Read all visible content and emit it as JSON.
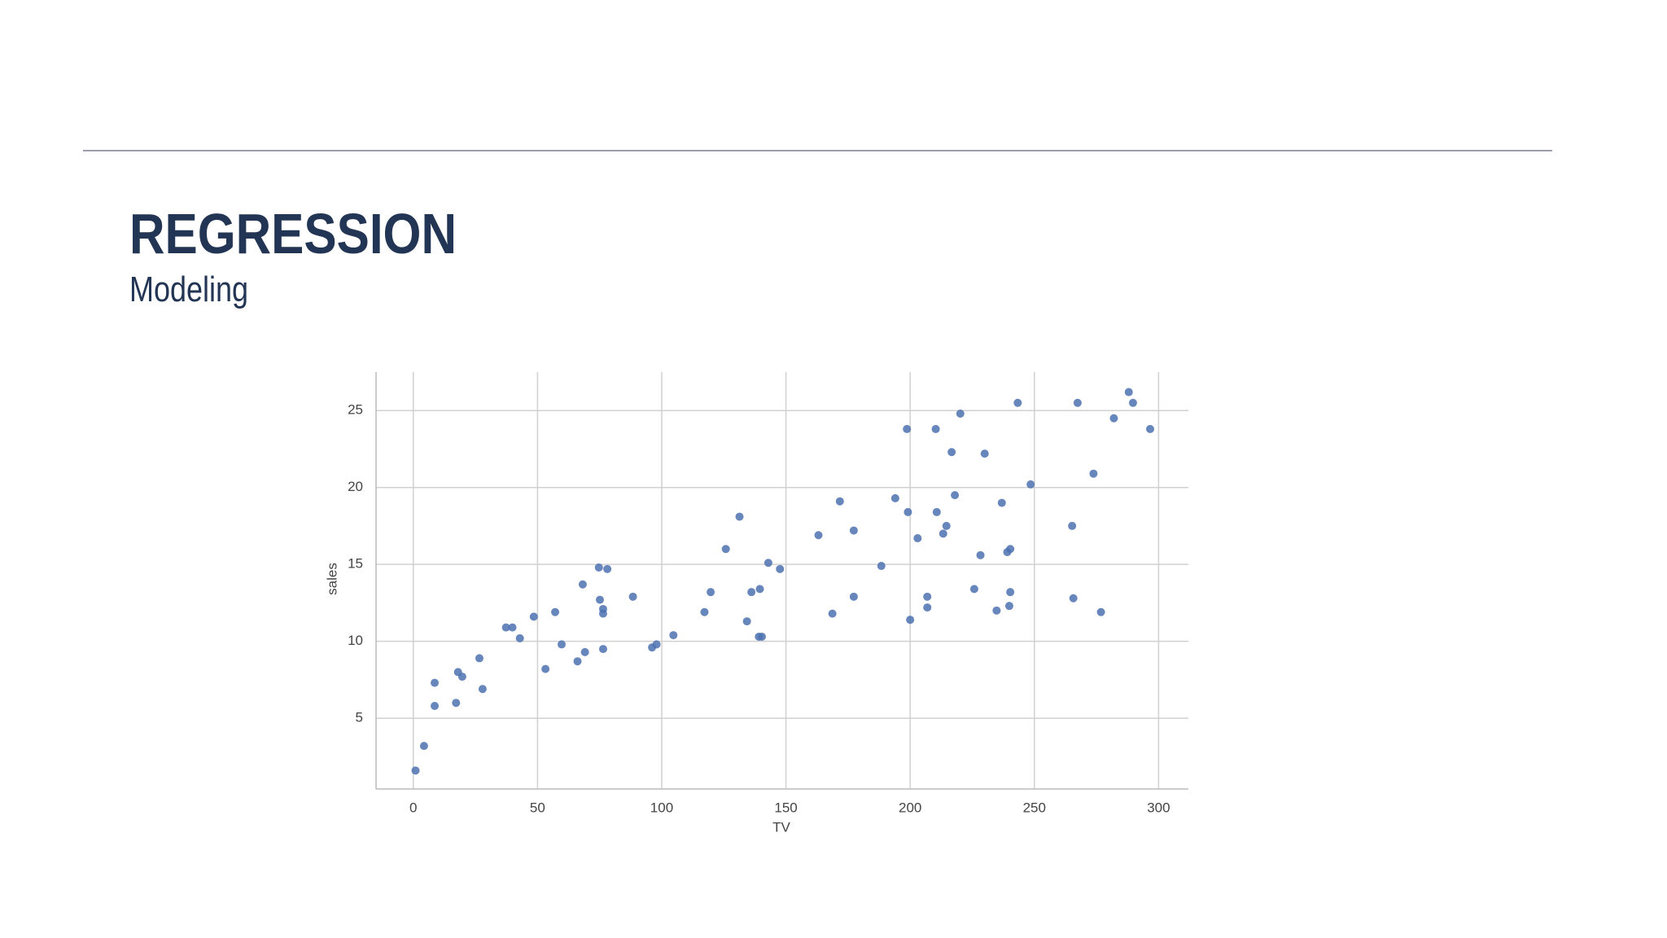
{
  "header": {
    "title": "REGRESSION",
    "subtitle": "Modeling"
  },
  "chart_data": {
    "type": "scatter",
    "x_label": "TV",
    "y_label": "sales",
    "color": "#4c72b0",
    "grid": true,
    "xlim": [
      -15,
      312
    ],
    "ylim": [
      0.4,
      27.5
    ],
    "xticks": [
      0,
      50,
      100,
      150,
      200,
      250,
      300
    ],
    "yticks": [
      5,
      10,
      15,
      20,
      25
    ],
    "x": [
      0.9,
      4.3,
      8.6,
      8.6,
      17.2,
      18.0,
      19.7,
      26.6,
      27.9,
      37.3,
      39.9,
      42.9,
      48.5,
      53.2,
      57.1,
      59.7,
      66.1,
      68.2,
      69.1,
      74.7,
      75.1,
      76.4,
      76.4,
      76.4,
      78.1,
      88.4,
      96.1,
      97.9,
      104.7,
      117.2,
      119.7,
      125.8,
      131.3,
      134.3,
      136.1,
      139.5,
      139.1,
      140.3,
      142.9,
      147.6,
      163.1,
      168.7,
      171.7,
      177.3,
      177.3,
      188.4,
      194.0,
      198.7,
      199.1,
      200.0,
      203.0,
      206.9,
      206.9,
      210.3,
      210.7,
      213.3,
      214.6,
      216.7,
      218.0,
      220.2,
      225.8,
      228.3,
      230.0,
      234.8,
      236.9,
      239.1,
      240.3,
      240.3,
      239.9,
      243.3,
      248.5,
      265.2,
      265.7,
      267.4,
      273.8,
      276.8,
      282.0,
      288.0,
      289.7,
      296.6
    ],
    "values": [
      1.6,
      3.2,
      7.3,
      5.8,
      6.0,
      8.0,
      7.7,
      8.9,
      6.9,
      10.9,
      10.9,
      10.2,
      11.6,
      8.2,
      11.9,
      9.8,
      8.7,
      13.7,
      9.3,
      14.8,
      12.7,
      12.1,
      11.8,
      9.5,
      14.7,
      12.9,
      9.6,
      9.8,
      10.4,
      11.9,
      13.2,
      16.0,
      18.1,
      11.3,
      13.2,
      13.4,
      10.3,
      10.3,
      15.1,
      14.7,
      16.9,
      11.8,
      19.1,
      17.2,
      12.9,
      14.9,
      19.3,
      23.8,
      18.4,
      11.4,
      16.7,
      12.9,
      12.2,
      23.8,
      18.4,
      17.0,
      17.5,
      22.3,
      19.5,
      24.8,
      13.4,
      15.6,
      22.2,
      12.0,
      19.0,
      15.8,
      16.0,
      13.2,
      12.3,
      25.5,
      20.2,
      17.5,
      12.8,
      25.5,
      20.9,
      11.9,
      24.5,
      26.2,
      25.5,
      23.8
    ]
  }
}
